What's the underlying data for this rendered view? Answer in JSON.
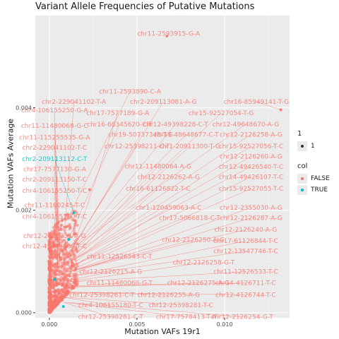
{
  "chart_data": {
    "type": "scatter",
    "title": "Variant Allele Frequencies of Putative Mutations",
    "xlabel": "Mutation VAFs 19r1",
    "ylabel": "Mutation VAFs Average",
    "xlim": [
      -0.0008,
      0.0137
    ],
    "ylim": [
      -0.0001,
      0.0058
    ],
    "x_ticks": [
      0.0,
      0.005,
      0.01
    ],
    "x_tick_labels": [
      "0.000",
      "0.005",
      "0.010"
    ],
    "y_ticks": [
      0.0,
      0.002,
      0.004
    ],
    "y_tick_labels": [
      "0.000",
      "0.002",
      "0.004"
    ],
    "grid": true,
    "legend_position": "right",
    "legend": [
      {
        "title": "1",
        "entries": [
          {
            "label": "1",
            "color": "#333333"
          }
        ]
      },
      {
        "title": "col",
        "entries": [
          {
            "label": "FALSE",
            "color": "#F8766D"
          },
          {
            "label": "TRUE",
            "color": "#00BFC4"
          }
        ]
      }
    ],
    "colors": {
      "FALSE": "#F8766D",
      "TRUE": "#00BFC4"
    },
    "highlight_points": [
      {
        "x": 0.0067,
        "y": 0.0054,
        "col": "FALSE"
      },
      {
        "x": 0.0132,
        "y": 0.00396,
        "col": "FALSE"
      },
      {
        "x": 0.0023,
        "y": 0.0024,
        "col": "FALSE"
      },
      {
        "x": 0.0014,
        "y": 0.00195,
        "col": "TRUE"
      },
      {
        "x": 0.0011,
        "y": 0.00143,
        "col": "TRUE"
      },
      {
        "x": 0.0003,
        "y": 0.00065,
        "col": "TRUE"
      },
      {
        "x": 0.0008,
        "y": 0.00012,
        "col": "TRUE"
      },
      {
        "x": 0.0005,
        "y": 0.00175,
        "col": "FALSE"
      },
      {
        "x": 0.0009,
        "y": 0.00125,
        "col": "FALSE"
      },
      {
        "x": 0.0013,
        "y": 0.00098,
        "col": "FALSE"
      }
    ],
    "labels": [
      {
        "text": "chr11-2593915-G-A",
        "x": 0.0068,
        "y": 0.00545,
        "col": "FALSE",
        "px": 0.0067,
        "py": 0.0054
      },
      {
        "text": "chr11-2593890-C-A",
        "x": 0.0046,
        "y": 0.00432,
        "col": "FALSE",
        "px": 0.001,
        "py": 0.0018
      },
      {
        "text": "chr2-229041102-T-A",
        "x": 0.0014,
        "y": 0.00412,
        "col": "FALSE",
        "px": 0.0009,
        "py": 0.0017
      },
      {
        "text": "chr2-209113081-A-G",
        "x": 0.0065,
        "y": 0.00412,
        "col": "FALSE",
        "px": 0.0012,
        "py": 0.0012
      },
      {
        "text": "chr16-85949141-T-G",
        "x": 0.0118,
        "y": 0.00412,
        "col": "FALSE",
        "px": 0.0132,
        "py": 0.00396
      },
      {
        "text": "chr17-7577189-G-A",
        "x": 0.0039,
        "y": 0.0039,
        "col": "FALSE",
        "px": 0.0011,
        "py": 0.001
      },
      {
        "text": "chr15-92527054-T-G",
        "x": 0.0098,
        "y": 0.0039,
        "col": "FALSE",
        "px": 0.0011,
        "py": 0.0011
      },
      {
        "text": "chr4-106155250-G-A",
        "x": 0.0003,
        "y": 0.00395,
        "col": "FALSE",
        "px": 0.0005,
        "py": 0.0015
      },
      {
        "text": "chr11-11480068-G-C",
        "x": 0.0003,
        "y": 0.00365,
        "col": "FALSE",
        "px": 0.0006,
        "py": 0.0013
      },
      {
        "text": "chr16-68345620-C-T",
        "x": 0.004,
        "y": 0.00368,
        "col": "FALSE",
        "px": 0.0008,
        "py": 0.0012
      },
      {
        "text": "chr12-49398228-C-T",
        "x": 0.0072,
        "y": 0.00368,
        "col": "FALSE",
        "px": 0.001,
        "py": 0.0011
      },
      {
        "text": "chr12-49648670-A-G",
        "x": 0.0112,
        "y": 0.00368,
        "col": "FALSE",
        "px": 0.0011,
        "py": 0.0012
      },
      {
        "text": "chr11-115255535-G-A",
        "x": 0.0003,
        "y": 0.00342,
        "col": "FALSE",
        "px": 0.0005,
        "py": 0.0012
      },
      {
        "text": "chr19-50737348-T-C",
        "x": 0.0052,
        "y": 0.00348,
        "col": "FALSE",
        "px": 0.0009,
        "py": 0.001
      },
      {
        "text": "chr19-48648677-C-T",
        "x": 0.0078,
        "y": 0.00348,
        "col": "FALSE",
        "px": 0.001,
        "py": 0.0011
      },
      {
        "text": "chr12-2126258-A-G",
        "x": 0.0115,
        "y": 0.00348,
        "col": "FALSE",
        "px": 0.0012,
        "py": 0.0011
      },
      {
        "text": "chr2-229041102-T-C",
        "x": 0.0003,
        "y": 0.00322,
        "col": "FALSE",
        "px": 0.0006,
        "py": 0.0011
      },
      {
        "text": "chr12-25398211-C-T",
        "x": 0.005,
        "y": 0.00325,
        "col": "FALSE",
        "px": 0.0008,
        "py": 0.001
      },
      {
        "text": "chr1-20911300-T-G",
        "x": 0.008,
        "y": 0.00325,
        "col": "FALSE",
        "px": 0.001,
        "py": 0.001
      },
      {
        "text": "chr15-92527056-T-C",
        "x": 0.0115,
        "y": 0.00325,
        "col": "FALSE",
        "px": 0.0012,
        "py": 0.001
      },
      {
        "text": "chr2-209113112-C-T",
        "x": 0.0003,
        "y": 0.003,
        "col": "TRUE",
        "px": 0.0014,
        "py": 0.00195
      },
      {
        "text": "chr12-2126260-A-G",
        "x": 0.0115,
        "y": 0.00305,
        "col": "FALSE",
        "px": 0.0012,
        "py": 0.001
      },
      {
        "text": "chr17-7577130-G-A",
        "x": 0.0003,
        "y": 0.0028,
        "col": "FALSE",
        "px": 0.0005,
        "py": 0.001
      },
      {
        "text": "chr11-11480064-A-G",
        "x": 0.0062,
        "y": 0.00286,
        "col": "FALSE",
        "px": 0.0009,
        "py": 0.0009
      },
      {
        "text": "chr12-49426540-T-C",
        "x": 0.0115,
        "y": 0.00285,
        "col": "FALSE",
        "px": 0.0012,
        "py": 0.001
      },
      {
        "text": "chr2-209113150-T-C",
        "x": 0.0003,
        "y": 0.0026,
        "col": "FALSE",
        "px": 0.0006,
        "py": 0.001
      },
      {
        "text": "chr12-2126262-A-G",
        "x": 0.0068,
        "y": 0.00265,
        "col": "FALSE",
        "px": 0.0009,
        "py": 0.0009
      },
      {
        "text": "chr14-49426107-T-C",
        "x": 0.0115,
        "y": 0.00265,
        "col": "FALSE",
        "px": 0.0012,
        "py": 0.0009
      },
      {
        "text": "chr4-106155250-T-C",
        "x": 0.0003,
        "y": 0.00238,
        "col": "FALSE",
        "px": 0.0005,
        "py": 0.0009
      },
      {
        "text": "chr16-61126822-T-C",
        "x": 0.0062,
        "y": 0.00242,
        "col": "FALSE",
        "px": 0.0009,
        "py": 0.0008
      },
      {
        "text": "chr15-92527055-T-C",
        "x": 0.0115,
        "y": 0.00242,
        "col": "FALSE",
        "px": 0.0012,
        "py": 0.0009
      },
      {
        "text": "chr11-1160245-T-C",
        "x": 0.0003,
        "y": 0.0021,
        "col": "FALSE",
        "px": 0.0006,
        "py": 0.0009
      },
      {
        "text": "chr1-120459063-A-C",
        "x": 0.0068,
        "y": 0.00205,
        "col": "FALSE",
        "px": 0.0009,
        "py": 0.0008
      },
      {
        "text": "chr12-2355030-A-G",
        "x": 0.0115,
        "y": 0.00205,
        "col": "FALSE",
        "px": 0.0012,
        "py": 0.0008
      },
      {
        "text": "chr4-106155180-T-C",
        "x": 0.0003,
        "y": 0.00188,
        "col": "FALSE",
        "px": 0.0005,
        "py": 0.0008
      },
      {
        "text": "chr17-5066818-C-T",
        "x": 0.008,
        "y": 0.00185,
        "col": "FALSE",
        "px": 0.001,
        "py": 0.0008
      },
      {
        "text": "chr12-2126287-A-G",
        "x": 0.0115,
        "y": 0.00185,
        "col": "FALSE",
        "px": 0.0012,
        "py": 0.0008
      },
      {
        "text": "chr12-2126240-A-G",
        "x": 0.0112,
        "y": 0.00162,
        "col": "FALSE",
        "px": 0.0011,
        "py": 0.0008
      },
      {
        "text": "chr12-2126251-A-G",
        "x": 0.0003,
        "y": 0.0015,
        "col": "FALSE",
        "px": 0.0006,
        "py": 0.0008
      },
      {
        "text": "chr12-2126250-A-G",
        "x": 0.0082,
        "y": 0.00142,
        "col": "FALSE",
        "px": 0.001,
        "py": 0.0008
      },
      {
        "text": "chr17-61126844-T-C",
        "x": 0.0112,
        "y": 0.0014,
        "col": "FALSE",
        "px": 0.0011,
        "py": 0.0007
      },
      {
        "text": "chr12-49443538-T-C",
        "x": 0.0003,
        "y": 0.0013,
        "col": "FALSE",
        "px": 0.0006,
        "py": 0.0007
      },
      {
        "text": "chr12-13547746-T-C",
        "x": 0.0112,
        "y": 0.0012,
        "col": "FALSE",
        "px": 0.0011,
        "py": 0.0007
      },
      {
        "text": "chr11-12526543-C-T",
        "x": 0.004,
        "y": 0.0011,
        "col": "FALSE",
        "px": 0.0008,
        "py": 0.0007
      },
      {
        "text": "chr12-2126258-G-T",
        "x": 0.0088,
        "y": 0.00098,
        "col": "FALSE",
        "px": 0.001,
        "py": 0.0006
      },
      {
        "text": "chr12-2126215-A-G",
        "x": 0.0035,
        "y": 0.0008,
        "col": "FALSE",
        "px": 0.0007,
        "py": 0.0006
      },
      {
        "text": "chr11-12526533-T-C",
        "x": 0.0112,
        "y": 0.0008,
        "col": "FALSE",
        "px": 0.0011,
        "py": 0.0006
      },
      {
        "text": "chr11-11480068-G-T",
        "x": 0.004,
        "y": 0.00058,
        "col": "FALSE",
        "px": 0.0008,
        "py": 0.0005
      },
      {
        "text": "chr12-2126275-A-G",
        "x": 0.0085,
        "y": 0.00058,
        "col": "FALSE",
        "px": 0.001,
        "py": 0.0005
      },
      {
        "text": "chr14-4126711-T-C",
        "x": 0.0112,
        "y": 0.00058,
        "col": "FALSE",
        "px": 0.0011,
        "py": 0.0005
      },
      {
        "text": "chr12-25398261-C-T",
        "x": 0.003,
        "y": 0.00035,
        "col": "FALSE",
        "px": 0.0007,
        "py": 0.0004
      },
      {
        "text": "chr12-2126255-A-G",
        "x": 0.0068,
        "y": 0.00035,
        "col": "FALSE",
        "px": 0.0009,
        "py": 0.0004
      },
      {
        "text": "chr12-4126744-T-C",
        "x": 0.0112,
        "y": 0.00035,
        "col": "FALSE",
        "px": 0.0011,
        "py": 0.0004
      },
      {
        "text": "chr4-106155180-T-C",
        "x": 0.0035,
        "y": 0.00015,
        "col": "FALSE",
        "px": 0.0008,
        "py": 0.0003
      },
      {
        "text": "chr12-25398281-T-C",
        "x": 0.0075,
        "y": 0.00015,
        "col": "FALSE",
        "px": 0.0009,
        "py": 0.0003
      },
      {
        "text": "chr17-7578413-T-A",
        "x": 0.0078,
        "y": -8e-05,
        "col": "FALSE",
        "px": 0.0009,
        "py": 0.0002
      },
      {
        "text": "chr12-25398281-C-T",
        "x": 0.0035,
        "y": -8e-05,
        "col": "FALSE",
        "px": 0.0008,
        "py": 0.0002
      },
      {
        "text": "chr12-2126254-G-T",
        "x": 0.011,
        "y": -8e-05,
        "col": "FALSE",
        "px": 0.0011,
        "py": 0.0002
      }
    ]
  }
}
